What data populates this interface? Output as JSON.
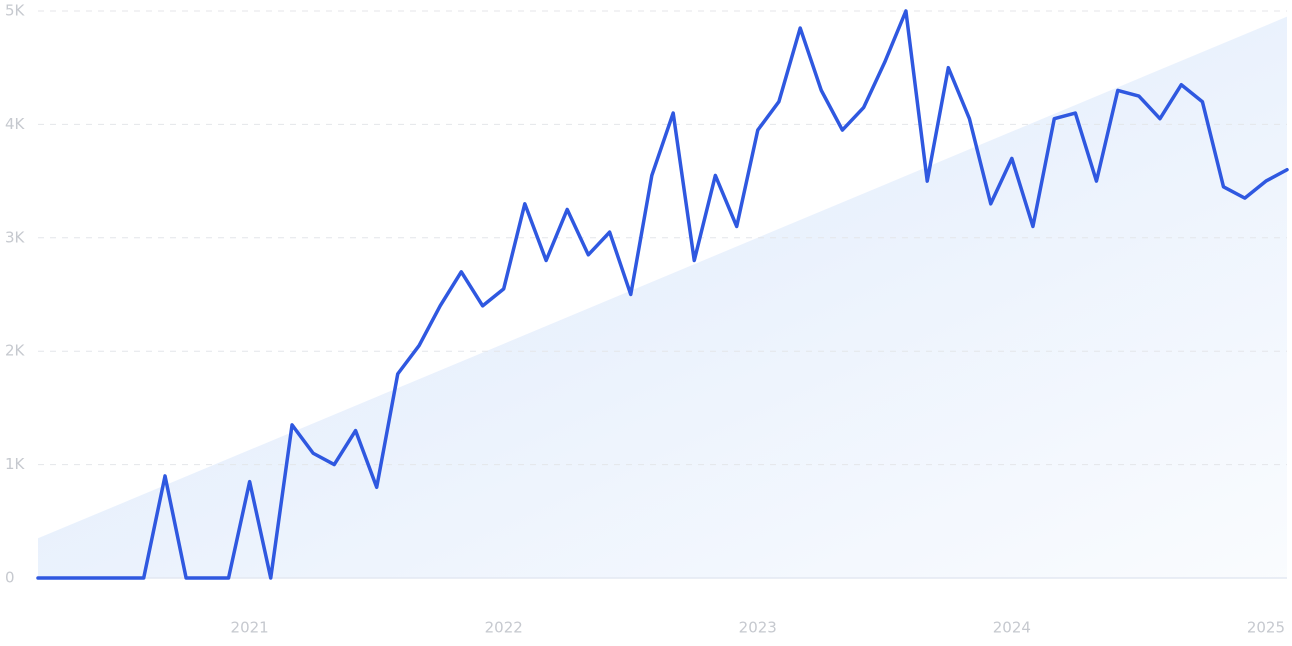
{
  "chart_data": {
    "type": "line",
    "x": [
      2020.167,
      2020.25,
      2020.333,
      2020.417,
      2020.5,
      2020.583,
      2020.667,
      2020.75,
      2020.833,
      2020.917,
      2021,
      2021.083,
      2021.167,
      2021.25,
      2021.333,
      2021.417,
      2021.5,
      2021.583,
      2021.667,
      2021.75,
      2021.833,
      2021.917,
      2022,
      2022.083,
      2022.167,
      2022.25,
      2022.333,
      2022.417,
      2022.5,
      2022.583,
      2022.667,
      2022.75,
      2022.833,
      2022.917,
      2023,
      2023.083,
      2023.167,
      2023.25,
      2023.333,
      2023.417,
      2023.5,
      2023.583,
      2023.667,
      2023.75,
      2023.833,
      2023.917,
      2024,
      2024.083,
      2024.167,
      2024.25,
      2024.333,
      2024.417,
      2024.5,
      2024.583,
      2024.667,
      2024.75,
      2024.833,
      2024.917,
      2025,
      2025.083
    ],
    "series": [
      {
        "color": "#2f58e0",
        "values": [
          0,
          0,
          0,
          0,
          0,
          0,
          900,
          0,
          0,
          0,
          850,
          0,
          1350,
          1100,
          1000,
          1300,
          800,
          1800,
          2050,
          2400,
          2700,
          2400,
          2550,
          3300,
          2800,
          3250,
          2850,
          3050,
          2500,
          3550,
          4100,
          2800,
          3550,
          3100,
          3950,
          4200,
          4850,
          4300,
          3950,
          4150,
          4550,
          5000,
          3500,
          4500,
          4050,
          3300,
          3700,
          3100,
          4050,
          4100,
          3500,
          4300,
          4250,
          4050,
          4350,
          4200,
          3450,
          3350,
          3500,
          3600
        ]
      }
    ],
    "trend": {
      "x": [
        2020.167,
        2025.083
      ],
      "values": [
        350,
        4950
      ],
      "color": "#dbe8fb"
    },
    "xlim": [
      2020.167,
      2025.083
    ],
    "xticks": [
      2021,
      2022,
      2023,
      2024,
      2025
    ],
    "ylim": [
      0,
      5000
    ],
    "yticks": [
      0,
      {
        "value": 1000,
        "label": "1K"
      },
      {
        "value": 2000,
        "label": "2K"
      },
      {
        "value": 3000,
        "label": "3K"
      },
      {
        "value": 4000,
        "label": "4K"
      },
      {
        "value": 5000,
        "label": "5K"
      }
    ],
    "grid": true
  }
}
